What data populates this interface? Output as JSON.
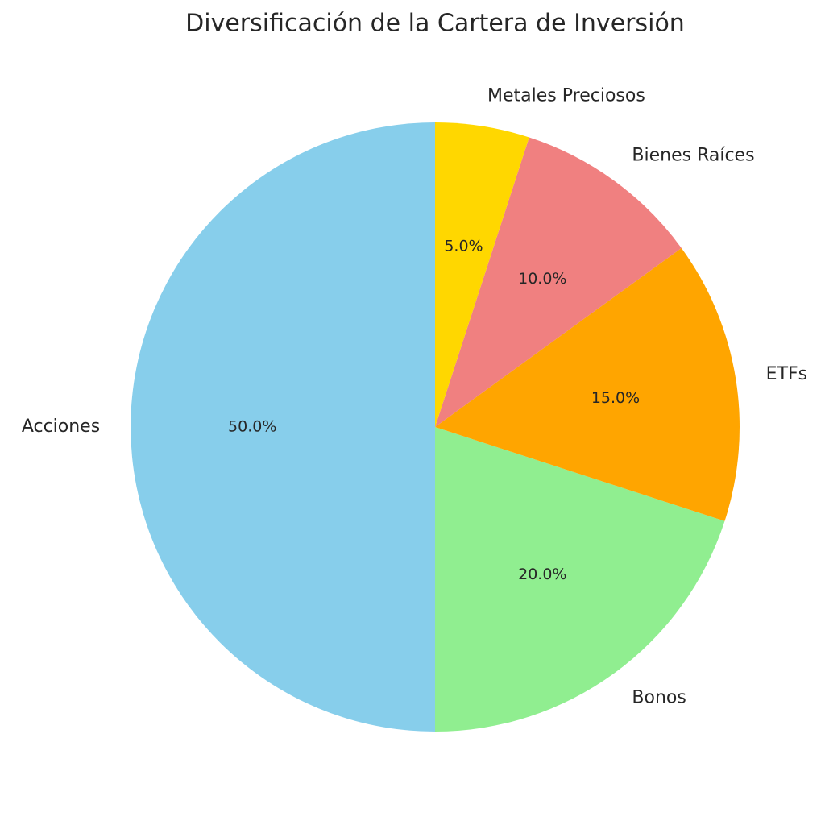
{
  "chart_data": {
    "type": "pie",
    "title": "Diversificación de la Cartera de Inversión",
    "categories": [
      "Acciones",
      "Bonos",
      "ETFs",
      "Bienes Raíces",
      "Metales Preciosos"
    ],
    "values": [
      50,
      20,
      15,
      10,
      5
    ],
    "value_labels": [
      "50.0%",
      "20.0%",
      "15.0%",
      "10.0%",
      "5.0%"
    ],
    "colors": [
      "#87ceeb",
      "#90ee90",
      "#ffa500",
      "#f08080",
      "#ffd700"
    ]
  }
}
